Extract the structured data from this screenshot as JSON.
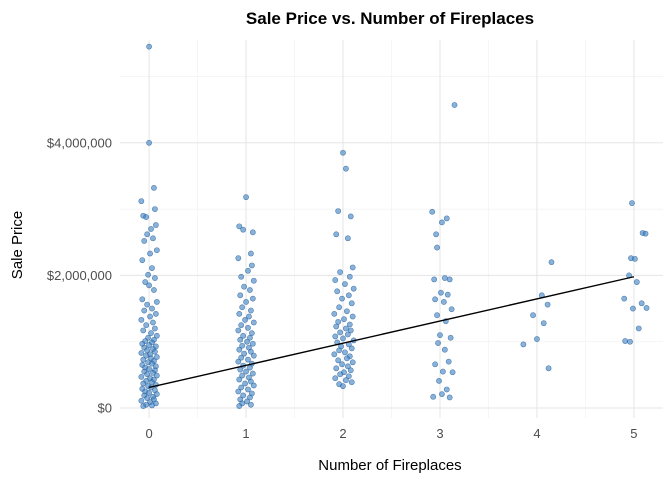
{
  "chart_data": {
    "type": "scatter",
    "title": "Sale Price vs. Number of Fireplaces",
    "xlabel": "Number of Fireplaces",
    "ylabel": "Sale Price",
    "xlim": [
      -0.3,
      5.3
    ],
    "ylim": [
      -150000,
      5550000
    ],
    "x_ticks": [
      0,
      1,
      2,
      3,
      4,
      5
    ],
    "x_tick_labels": [
      "0",
      "1",
      "2",
      "3",
      "4",
      "5"
    ],
    "y_ticks": [
      0,
      2000000,
      4000000
    ],
    "y_tick_labels": [
      "$0",
      "$2,000,000",
      "$4,000,000"
    ],
    "grid": true,
    "point_color": "#3a7fc1",
    "trend_line": {
      "x": [
        0,
        5
      ],
      "y": [
        310000,
        1980000
      ],
      "color": "#000000"
    },
    "series": [
      {
        "points": [
          [
            0.0,
            5450000
          ],
          [
            0.0,
            4000000
          ],
          [
            0.05,
            3320000
          ],
          [
            -0.08,
            3120000
          ],
          [
            0.06,
            3000000
          ],
          [
            -0.06,
            2900000
          ],
          [
            -0.03,
            2880000
          ],
          [
            0.07,
            2760000
          ],
          [
            0.02,
            2700000
          ],
          [
            -0.02,
            2620000
          ],
          [
            0.04,
            2560000
          ],
          [
            -0.05,
            2520000
          ],
          [
            0.08,
            2380000
          ],
          [
            0.01,
            2330000
          ],
          [
            -0.07,
            2230000
          ],
          [
            0.03,
            2110000
          ],
          [
            -0.01,
            2010000
          ],
          [
            0.06,
            1960000
          ],
          [
            -0.04,
            1900000
          ],
          [
            0.0,
            1850000
          ],
          [
            0.05,
            1780000
          ],
          [
            -0.07,
            1640000
          ],
          [
            0.08,
            1600000
          ],
          [
            -0.02,
            1560000
          ],
          [
            0.03,
            1500000
          ],
          [
            -0.05,
            1470000
          ],
          [
            0.07,
            1420000
          ],
          [
            0.01,
            1380000
          ],
          [
            -0.08,
            1330000
          ],
          [
            0.04,
            1290000
          ],
          [
            -0.03,
            1250000
          ],
          [
            0.06,
            1200000
          ],
          [
            -0.06,
            1170000
          ],
          [
            0.02,
            1130000
          ],
          [
            0.08,
            1090000
          ],
          [
            -0.01,
            1060000
          ],
          [
            0.05,
            1030000
          ],
          [
            -0.04,
            1010000
          ],
          [
            0.03,
            990000
          ],
          [
            -0.07,
            970000
          ],
          [
            0.0,
            950000
          ],
          [
            0.07,
            930000
          ],
          [
            -0.05,
            910000
          ],
          [
            0.04,
            890000
          ],
          [
            -0.02,
            870000
          ],
          [
            0.06,
            850000
          ],
          [
            -0.08,
            830000
          ],
          [
            0.01,
            810000
          ],
          [
            -0.03,
            790000
          ],
          [
            0.08,
            770000
          ],
          [
            0.02,
            750000
          ],
          [
            -0.06,
            730000
          ],
          [
            0.05,
            710000
          ],
          [
            -0.01,
            690000
          ],
          [
            0.03,
            670000
          ],
          [
            -0.07,
            650000
          ],
          [
            0.07,
            630000
          ],
          [
            -0.04,
            610000
          ],
          [
            0.0,
            590000
          ],
          [
            0.06,
            570000
          ],
          [
            -0.05,
            550000
          ],
          [
            0.04,
            530000
          ],
          [
            -0.02,
            510000
          ],
          [
            0.08,
            490000
          ],
          [
            -0.08,
            470000
          ],
          [
            0.01,
            450000
          ],
          [
            0.05,
            430000
          ],
          [
            -0.03,
            410000
          ],
          [
            0.03,
            390000
          ],
          [
            -0.06,
            370000
          ],
          [
            0.07,
            350000
          ],
          [
            -0.01,
            330000
          ],
          [
            0.02,
            310000
          ],
          [
            -0.07,
            290000
          ],
          [
            0.06,
            270000
          ],
          [
            -0.04,
            250000
          ],
          [
            0.0,
            230000
          ],
          [
            0.08,
            210000
          ],
          [
            -0.05,
            190000
          ],
          [
            0.04,
            170000
          ],
          [
            -0.02,
            150000
          ],
          [
            0.05,
            130000
          ],
          [
            -0.08,
            110000
          ],
          [
            0.01,
            90000
          ],
          [
            0.07,
            70000
          ],
          [
            -0.03,
            50000
          ],
          [
            0.03,
            40000
          ],
          [
            -0.06,
            30000
          ],
          [
            1.0,
            3180000
          ],
          [
            0.93,
            2740000
          ],
          [
            0.97,
            2690000
          ],
          [
            1.07,
            2650000
          ],
          [
            1.05,
            2330000
          ],
          [
            0.92,
            2260000
          ],
          [
            1.06,
            2150000
          ],
          [
            1.02,
            2070000
          ],
          [
            0.95,
            1980000
          ],
          [
            1.08,
            1920000
          ],
          [
            0.98,
            1830000
          ],
          [
            1.04,
            1780000
          ],
          [
            0.94,
            1700000
          ],
          [
            1.07,
            1650000
          ],
          [
            1.0,
            1600000
          ],
          [
            0.96,
            1520000
          ],
          [
            1.05,
            1470000
          ],
          [
            0.93,
            1420000
          ],
          [
            1.03,
            1380000
          ],
          [
            0.99,
            1330000
          ],
          [
            1.08,
            1290000
          ],
          [
            0.95,
            1250000
          ],
          [
            1.02,
            1210000
          ],
          [
            0.92,
            1170000
          ],
          [
            1.06,
            1130000
          ],
          [
            0.97,
            1090000
          ],
          [
            1.04,
            1060000
          ],
          [
            0.94,
            1030000
          ],
          [
            1.01,
            1000000
          ],
          [
            1.07,
            970000
          ],
          [
            0.96,
            940000
          ],
          [
            1.03,
            910000
          ],
          [
            0.93,
            880000
          ],
          [
            1.05,
            850000
          ],
          [
            0.98,
            820000
          ],
          [
            1.08,
            790000
          ],
          [
            0.95,
            760000
          ],
          [
            1.02,
            730000
          ],
          [
            0.92,
            700000
          ],
          [
            1.06,
            670000
          ],
          [
            0.97,
            640000
          ],
          [
            1.04,
            610000
          ],
          [
            0.94,
            580000
          ],
          [
            1.0,
            550000
          ],
          [
            1.07,
            520000
          ],
          [
            0.96,
            490000
          ],
          [
            1.03,
            460000
          ],
          [
            0.93,
            430000
          ],
          [
            1.05,
            400000
          ],
          [
            0.99,
            370000
          ],
          [
            1.08,
            340000
          ],
          [
            0.95,
            310000
          ],
          [
            1.02,
            280000
          ],
          [
            0.92,
            250000
          ],
          [
            1.06,
            220000
          ],
          [
            0.97,
            190000
          ],
          [
            1.04,
            160000
          ],
          [
            0.94,
            130000
          ],
          [
            1.01,
            100000
          ],
          [
            0.96,
            70000
          ],
          [
            1.05,
            50000
          ],
          [
            0.93,
            30000
          ],
          [
            2.0,
            3850000
          ],
          [
            2.03,
            3610000
          ],
          [
            1.95,
            2970000
          ],
          [
            2.08,
            2890000
          ],
          [
            1.93,
            2620000
          ],
          [
            2.05,
            2560000
          ],
          [
            2.1,
            2120000
          ],
          [
            1.97,
            2050000
          ],
          [
            2.07,
            1980000
          ],
          [
            1.92,
            1930000
          ],
          [
            2.02,
            1870000
          ],
          [
            2.11,
            1800000
          ],
          [
            1.94,
            1760000
          ],
          [
            2.06,
            1700000
          ],
          [
            1.99,
            1650000
          ],
          [
            2.09,
            1580000
          ],
          [
            1.96,
            1520000
          ],
          [
            2.04,
            1460000
          ],
          [
            1.91,
            1420000
          ],
          [
            2.1,
            1380000
          ],
          [
            2.01,
            1340000
          ],
          [
            1.95,
            1300000
          ],
          [
            2.07,
            1260000
          ],
          [
            1.93,
            1230000
          ],
          [
            2.03,
            1200000
          ],
          [
            2.08,
            1170000
          ],
          [
            1.97,
            1140000
          ],
          [
            2.05,
            1110000
          ],
          [
            1.92,
            1080000
          ],
          [
            2.0,
            1050000
          ],
          [
            2.11,
            1020000
          ],
          [
            1.94,
            990000
          ],
          [
            2.06,
            960000
          ],
          [
            1.98,
            930000
          ],
          [
            2.09,
            900000
          ],
          [
            1.96,
            870000
          ],
          [
            2.02,
            840000
          ],
          [
            1.91,
            810000
          ],
          [
            2.07,
            780000
          ],
          [
            2.04,
            750000
          ],
          [
            1.95,
            720000
          ],
          [
            2.1,
            690000
          ],
          [
            1.99,
            660000
          ],
          [
            2.05,
            630000
          ],
          [
            1.93,
            600000
          ],
          [
            2.08,
            570000
          ],
          [
            2.01,
            540000
          ],
          [
            1.97,
            510000
          ],
          [
            2.06,
            480000
          ],
          [
            1.92,
            450000
          ],
          [
            2.03,
            420000
          ],
          [
            2.09,
            390000
          ],
          [
            1.96,
            360000
          ],
          [
            2.0,
            330000
          ],
          [
            3.15,
            4570000
          ],
          [
            2.92,
            2960000
          ],
          [
            3.07,
            2860000
          ],
          [
            3.02,
            2800000
          ],
          [
            2.96,
            2620000
          ],
          [
            2.97,
            2420000
          ],
          [
            3.05,
            1960000
          ],
          [
            3.1,
            1940000
          ],
          [
            2.94,
            1940000
          ],
          [
            3.01,
            1740000
          ],
          [
            3.08,
            1710000
          ],
          [
            2.95,
            1640000
          ],
          [
            3.04,
            1600000
          ],
          [
            3.12,
            1490000
          ],
          [
            2.97,
            1400000
          ],
          [
            3.06,
            1310000
          ],
          [
            3.0,
            1100000
          ],
          [
            3.11,
            1060000
          ],
          [
            2.98,
            980000
          ],
          [
            3.05,
            880000
          ],
          [
            3.09,
            700000
          ],
          [
            2.95,
            660000
          ],
          [
            3.03,
            550000
          ],
          [
            3.13,
            540000
          ],
          [
            2.99,
            410000
          ],
          [
            3.07,
            280000
          ],
          [
            3.02,
            210000
          ],
          [
            2.93,
            170000
          ],
          [
            3.1,
            160000
          ],
          [
            4.15,
            2200000
          ],
          [
            4.05,
            1700000
          ],
          [
            4.11,
            1560000
          ],
          [
            3.96,
            1400000
          ],
          [
            4.07,
            1280000
          ],
          [
            4.0,
            1040000
          ],
          [
            3.86,
            960000
          ],
          [
            4.12,
            600000
          ],
          [
            4.98,
            3090000
          ],
          [
            5.09,
            2640000
          ],
          [
            5.12,
            2630000
          ],
          [
            4.97,
            2260000
          ],
          [
            5.01,
            2250000
          ],
          [
            4.95,
            2000000
          ],
          [
            5.03,
            1900000
          ],
          [
            4.9,
            1650000
          ],
          [
            5.08,
            1580000
          ],
          [
            5.13,
            1510000
          ],
          [
            4.99,
            1500000
          ],
          [
            5.05,
            1200000
          ],
          [
            4.91,
            1010000
          ],
          [
            4.96,
            1000000
          ]
        ]
      }
    ]
  }
}
